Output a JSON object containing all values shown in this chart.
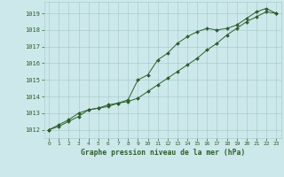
{
  "title": "Graphe pression niveau de la mer (hPa)",
  "bg_color": "#cce8ea",
  "grid_color": "#aacdd0",
  "line_color": "#2d5e2d",
  "marker_color": "#2d5e2d",
  "x_ticks": [
    0,
    1,
    2,
    3,
    4,
    5,
    6,
    7,
    8,
    9,
    10,
    11,
    12,
    13,
    14,
    15,
    16,
    17,
    18,
    19,
    20,
    21,
    22,
    23
  ],
  "xlim": [
    -0.5,
    23.5
  ],
  "ylim": [
    1011.5,
    1019.7
  ],
  "y_ticks": [
    1012,
    1013,
    1014,
    1015,
    1016,
    1017,
    1018,
    1019
  ],
  "series1_x": [
    0,
    1,
    2,
    3,
    4,
    5,
    6,
    7,
    8,
    9,
    10,
    11,
    12,
    13,
    14,
    15,
    16,
    17,
    18,
    19,
    20,
    21,
    22,
    23
  ],
  "series1_y": [
    1012.0,
    1012.2,
    1012.5,
    1012.8,
    1013.2,
    1013.3,
    1013.4,
    1013.6,
    1013.8,
    1015.0,
    1015.3,
    1016.2,
    1016.6,
    1017.2,
    1017.6,
    1017.9,
    1018.1,
    1018.0,
    1018.1,
    1018.3,
    1018.7,
    1019.1,
    1019.3,
    1019.0
  ],
  "series2_x": [
    0,
    1,
    2,
    3,
    4,
    5,
    6,
    7,
    8,
    9,
    10,
    11,
    12,
    13,
    14,
    15,
    16,
    17,
    18,
    19,
    20,
    21,
    22,
    23
  ],
  "series2_y": [
    1012.0,
    1012.3,
    1012.6,
    1013.0,
    1013.2,
    1013.3,
    1013.5,
    1013.6,
    1013.7,
    1013.9,
    1014.3,
    1014.7,
    1015.1,
    1015.5,
    1015.9,
    1016.3,
    1016.8,
    1017.2,
    1017.7,
    1018.1,
    1018.5,
    1018.8,
    1019.1,
    1019.0
  ]
}
